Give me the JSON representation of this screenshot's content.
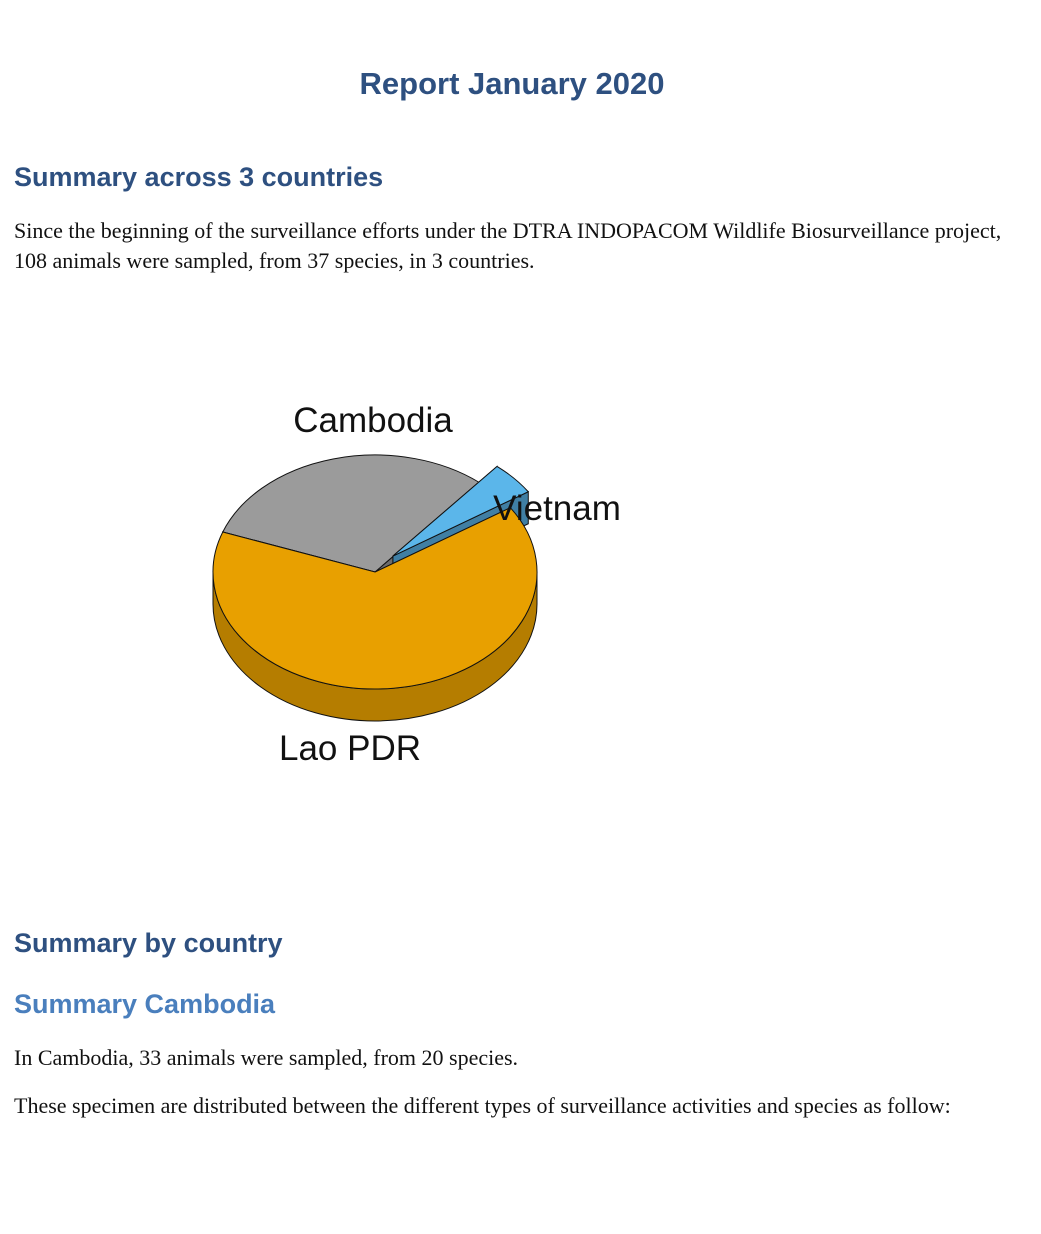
{
  "document": {
    "title": "Report January 2020",
    "section_overall_heading": "Summary across 3 countries",
    "section_overall_text": "Since the beginning of the surveillance efforts under the DTRA INDOPACOM Wildlife Biosurveillance project, 108 animals were sampled, from 37 species, in 3 countries.",
    "section_country_heading": "Summary by country",
    "subsection_cambodia_heading": "Summary Cambodia",
    "cambodia_text_1": "In Cambodia, 33 animals were sampled, from 20 species.",
    "cambodia_text_2": "These specimen are distributed between the different types of surveillance activities and species as follow:"
  },
  "chart_data": {
    "type": "pie",
    "style": "3d",
    "categories": [
      "Cambodia",
      "Vietnam",
      "Lao PDR"
    ],
    "values": [
      33,
      5,
      70
    ],
    "colors": {
      "Cambodia": "#9b9b9b",
      "Vietnam": "#5bb6ea",
      "Lao PDR": "#e8a000"
    },
    "exploded": [
      "Vietnam"
    ],
    "legend": "none"
  }
}
